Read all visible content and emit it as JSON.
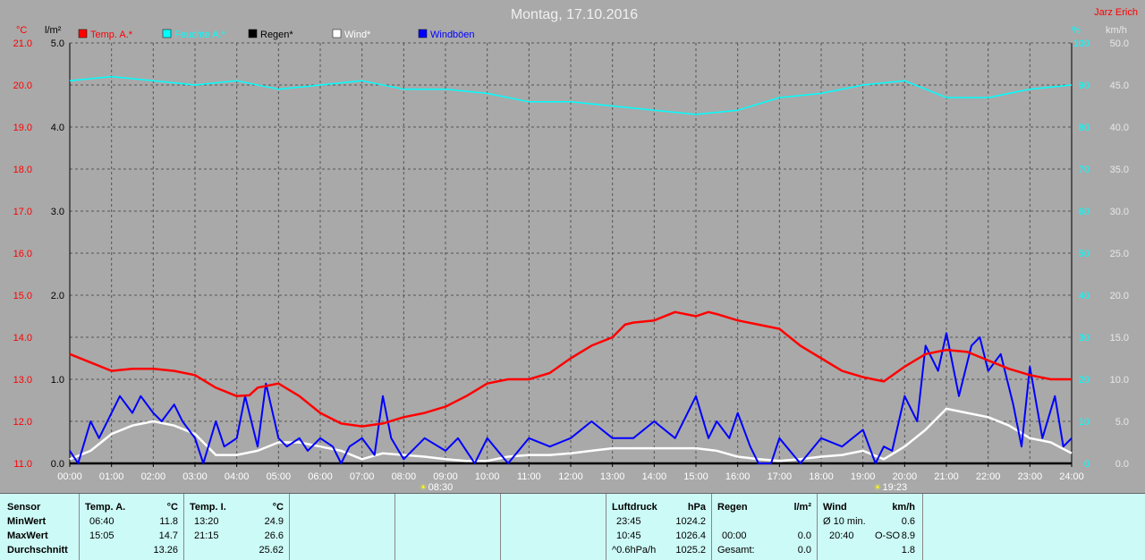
{
  "title": "Montag, 17.10.2016",
  "author": "Jarz Erich",
  "axes": {
    "left1_unit": "°C",
    "left2_unit": "l/m²",
    "right1_unit": "%",
    "right2_unit": "km/h",
    "temp_ticks": [
      "21.0",
      "20.0",
      "19.0",
      "18.0",
      "17.0",
      "16.0",
      "15.0",
      "14.0",
      "13.0",
      "12.0",
      "11.0"
    ],
    "rain_ticks": [
      "5.0",
      "",
      "4.0",
      "",
      "3.0",
      "",
      "2.0",
      "",
      "1.0",
      "",
      "0.0"
    ],
    "hum_ticks": [
      "100",
      "90",
      "80",
      "70",
      "60",
      "50",
      "40",
      "30",
      "20",
      "10",
      "0"
    ],
    "wind_ticks": [
      "50.0",
      "45.0",
      "40.0",
      "35.0",
      "30.0",
      "25.0",
      "20.0",
      "15.0",
      "10.0",
      "5.0",
      "0.0"
    ],
    "time_ticks": [
      "00:00",
      "01:00",
      "02:00",
      "03:00",
      "04:00",
      "05:00",
      "06:00",
      "07:00",
      "08:00",
      "09:00",
      "10:00",
      "11:00",
      "12:00",
      "13:00",
      "14:00",
      "15:00",
      "16:00",
      "17:00",
      "18:00",
      "19:00",
      "20:00",
      "21:00",
      "22:00",
      "23:00",
      "24:00"
    ]
  },
  "sun": {
    "sunrise": "08:30",
    "sunset": "19:23"
  },
  "legend": [
    {
      "label": "Temp. A.*",
      "color": "#ff0000"
    },
    {
      "label": "Feuchte A.*",
      "color": "#00ffff"
    },
    {
      "label": "Regen*",
      "color": "#000000"
    },
    {
      "label": "Wind*",
      "color": "#ffffff"
    },
    {
      "label": "Windböen",
      "color": "#0000ff"
    }
  ],
  "chart_data": {
    "type": "line",
    "title": "Montag, 17.10.2016",
    "x_unit": "hour",
    "xlim": [
      0,
      24
    ],
    "temp_ylim": [
      11.0,
      21.0
    ],
    "rain_ylim": [
      0.0,
      5.0
    ],
    "hum_ylim": [
      0,
      100
    ],
    "wind_ylim": [
      0.0,
      50.0
    ],
    "grid": true,
    "legend_position": "top-left",
    "series": [
      {
        "name": "Temp. A.*",
        "axis": "temp",
        "color": "#ff0000",
        "x": [
          0,
          0.5,
          1,
          1.5,
          2,
          2.5,
          3,
          3.5,
          4,
          4.3,
          4.5,
          5,
          5.5,
          6,
          6.5,
          7,
          7.5,
          8,
          8.5,
          9,
          9.5,
          10,
          10.5,
          11,
          11.5,
          12,
          12.5,
          13,
          13.3,
          13.5,
          14,
          14.5,
          15,
          15.3,
          15.5,
          16,
          16.5,
          17,
          17.5,
          18,
          18.5,
          19,
          19.5,
          20,
          20.5,
          21,
          21.5,
          22,
          22.5,
          23,
          23.5,
          24
        ],
        "values": [
          13.6,
          13.4,
          13.2,
          13.25,
          13.25,
          13.2,
          13.1,
          12.8,
          12.6,
          12.62,
          12.8,
          12.9,
          12.6,
          12.2,
          11.95,
          11.88,
          11.95,
          12.1,
          12.2,
          12.35,
          12.6,
          12.9,
          13.0,
          13.0,
          13.15,
          13.5,
          13.8,
          14.0,
          14.3,
          14.35,
          14.4,
          14.6,
          14.5,
          14.6,
          14.55,
          14.4,
          14.3,
          14.2,
          13.8,
          13.5,
          13.2,
          13.05,
          12.95,
          13.3,
          13.6,
          13.7,
          13.65,
          13.45,
          13.25,
          13.1,
          13.0,
          13.0
        ]
      },
      {
        "name": "Feuchte A.*",
        "axis": "hum",
        "color": "#00ffff",
        "x": [
          0,
          1,
          2,
          3,
          4,
          5,
          6,
          7,
          8,
          9,
          10,
          11,
          12,
          13,
          14,
          15,
          16,
          17,
          18,
          19,
          20,
          21,
          22,
          23,
          24
        ],
        "values": [
          91,
          92,
          91,
          90,
          91,
          89,
          90,
          91,
          89,
          89,
          88,
          86,
          86,
          85,
          84,
          83,
          84,
          87,
          88,
          90,
          91,
          87,
          87,
          89,
          90
        ]
      },
      {
        "name": "Regen*",
        "axis": "rain",
        "color": "#000000",
        "x": [
          0,
          24
        ],
        "values": [
          0.0,
          0.0
        ]
      },
      {
        "name": "Wind*",
        "axis": "wind",
        "color": "#ffffff",
        "x": [
          0,
          0.5,
          1,
          1.5,
          2,
          2.5,
          3,
          3.5,
          4,
          4.5,
          5,
          5.5,
          6,
          6.5,
          7,
          7.5,
          8,
          8.5,
          9,
          9.5,
          10,
          10.5,
          11,
          11.5,
          12,
          12.5,
          13,
          13.5,
          14,
          14.5,
          15,
          15.5,
          16,
          16.5,
          17,
          17.5,
          18,
          18.5,
          19,
          19.5,
          20,
          20.5,
          21,
          21.5,
          22,
          22.5,
          23,
          23.5,
          24
        ],
        "values": [
          0.5,
          1.5,
          3.5,
          4.5,
          5.0,
          4.5,
          3.5,
          1.0,
          1.0,
          1.5,
          2.5,
          2.5,
          2.0,
          1.5,
          0.5,
          1.2,
          1.0,
          0.8,
          0.5,
          0.3,
          0.3,
          0.8,
          1.0,
          1.0,
          1.2,
          1.5,
          1.8,
          1.8,
          1.8,
          1.8,
          1.8,
          1.5,
          0.8,
          0.5,
          0.3,
          0.5,
          0.8,
          1.0,
          1.5,
          0.5,
          2.0,
          4.0,
          6.5,
          6.0,
          5.5,
          4.5,
          3.0,
          2.5,
          1.2
        ]
      },
      {
        "name": "Windböen",
        "axis": "wind",
        "color": "#0000ff",
        "x": [
          0,
          0.2,
          0.5,
          0.7,
          1,
          1.2,
          1.5,
          1.7,
          2,
          2.2,
          2.5,
          2.7,
          3,
          3.2,
          3.5,
          3.7,
          4,
          4.2,
          4.5,
          4.7,
          5,
          5.2,
          5.5,
          5.7,
          6,
          6.3,
          6.5,
          6.7,
          7,
          7.3,
          7.5,
          7.7,
          8,
          8.5,
          9,
          9.3,
          9.7,
          10,
          10.5,
          11,
          11.5,
          12,
          12.5,
          13,
          13.5,
          14,
          14.5,
          15,
          15.3,
          15.5,
          15.8,
          16,
          16.3,
          16.5,
          16.8,
          17,
          17.5,
          18,
          18.5,
          19,
          19.3,
          19.5,
          19.7,
          20,
          20.3,
          20.5,
          20.8,
          21,
          21.3,
          21.6,
          21.8,
          22,
          22.3,
          22.6,
          22.8,
          23,
          23.3,
          23.6,
          23.8,
          24
        ],
        "values": [
          1.5,
          0,
          5.0,
          3.0,
          6.0,
          8.0,
          6.0,
          8.0,
          6.0,
          5.0,
          7.0,
          5.0,
          3.0,
          0,
          5.0,
          2.0,
          3.0,
          8.0,
          2.0,
          9.5,
          3.0,
          2.0,
          3.0,
          1.5,
          3.0,
          2.0,
          0,
          2.0,
          3.0,
          1.0,
          8.0,
          3.0,
          0.5,
          3.0,
          1.5,
          3.0,
          0,
          3.0,
          0,
          3.0,
          2.0,
          3.0,
          5.0,
          3.0,
          3.0,
          5.0,
          3.0,
          8.0,
          3.0,
          5.0,
          3.0,
          6.0,
          2.0,
          0,
          0,
          3.0,
          0,
          3.0,
          2.0,
          4.0,
          0,
          2.0,
          1.5,
          8.0,
          5.0,
          14.0,
          11.0,
          15.5,
          8.0,
          14.0,
          15.0,
          11.0,
          13.0,
          7.0,
          2.0,
          11.5,
          3.0,
          8.0,
          2.0,
          3.0
        ]
      }
    ]
  },
  "stats": {
    "sensor": {
      "header": "Sensor",
      "min": "MinWert",
      "max": "MaxWert",
      "avg": "Durchschnitt"
    },
    "temp_a": {
      "header": "Temp. A.",
      "unit": "°C",
      "min_time": "06:40",
      "min_val": "11.8",
      "max_time": "15:05",
      "max_val": "14.7",
      "avg": "13.26"
    },
    "temp_i": {
      "header": "Temp. I.",
      "unit": "°C",
      "min_time": "13:20",
      "min_val": "24.9",
      "max_time": "21:15",
      "max_val": "26.6",
      "avg": "25.62"
    },
    "luftdruck": {
      "header": "Luftdruck",
      "unit": "hPa",
      "min_time": "23:45",
      "min_val": "1024.2",
      "max_time": "10:45",
      "max_val": "1026.4",
      "trend": "^0.6hPa/h",
      "avg": "1025.2"
    },
    "regen": {
      "header": "Regen",
      "unit": "l/m²",
      "max_time": "00:00",
      "max_val": "0.0",
      "total_label": "Gesamt:",
      "total": "0.0"
    },
    "wind": {
      "header": "Wind",
      "unit": "km/h",
      "avg_label": "Ø 10 min.",
      "avg_val": "0.6",
      "max_time": "20:40",
      "max_dir": "O-SO",
      "max_val": "8.9",
      "avg": "1.8"
    }
  }
}
